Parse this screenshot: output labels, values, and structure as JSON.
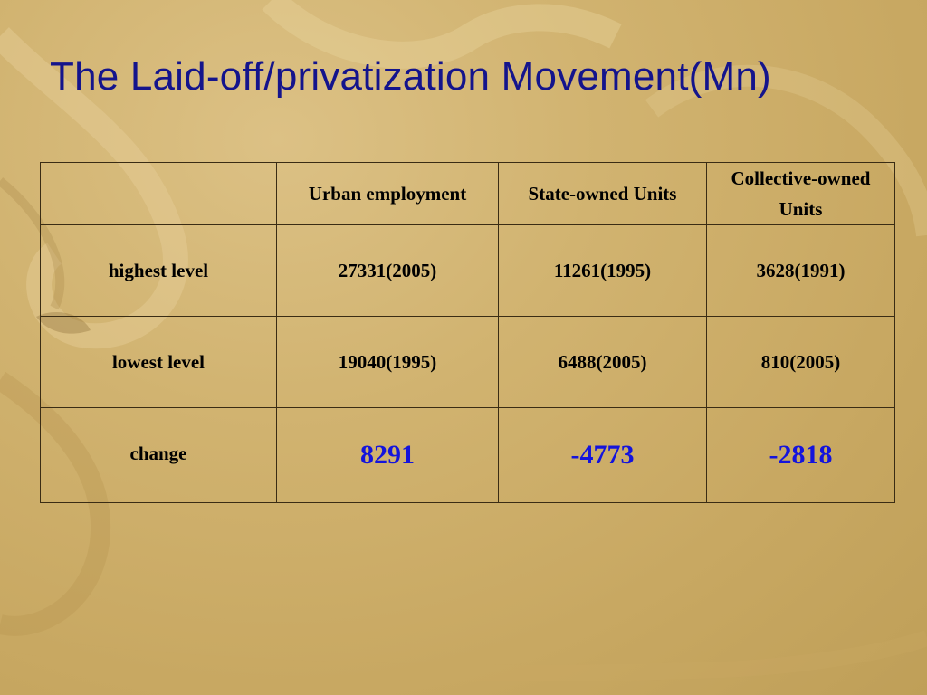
{
  "title": "The Laid-off/privatization Movement(Mn)",
  "table": {
    "headers": [
      "",
      "Urban employment",
      "State-owned Units",
      "Collective-owned Units"
    ],
    "rows": [
      {
        "label": "highest level",
        "cells": [
          "27331(2005)",
          "11261(1995)",
          "3628(1991)"
        ]
      },
      {
        "label": "lowest level",
        "cells": [
          "19040(1995)",
          "6488(2005)",
          "810(2005)"
        ]
      },
      {
        "label": "change",
        "cells": [
          "8291",
          "-4773",
          "-2818"
        ]
      }
    ]
  },
  "colors": {
    "title": "#14148c",
    "change_values": "#1414dc",
    "background": "#d1b370"
  }
}
